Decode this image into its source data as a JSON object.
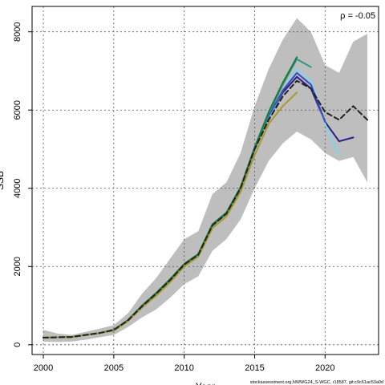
{
  "chart_data": {
    "type": "line",
    "title": "",
    "xlabel": "Year",
    "ylabel": "SSB",
    "xlim": [
      1999.2,
      2023.8
    ],
    "ylim": [
      -250,
      8650
    ],
    "xticks": [
      2000,
      2005,
      2010,
      2015,
      2020
    ],
    "yticks": [
      0,
      2000,
      4000,
      6000,
      8000
    ],
    "grid": true,
    "annotation": "ρ = -0.05",
    "confidence_band": {
      "x": [
        2000,
        2001,
        2002,
        2003,
        2004,
        2005,
        2006,
        2007,
        2008,
        2009,
        2010,
        2011,
        2012,
        2013,
        2014,
        2015,
        2016,
        2017,
        2018,
        2019,
        2020,
        2021,
        2022,
        2023
      ],
      "upper": [
        380,
        290,
        250,
        330,
        410,
        500,
        800,
        1300,
        1700,
        2200,
        2700,
        2900,
        3850,
        4150,
        4900,
        6100,
        7050,
        7800,
        8350,
        8000,
        7150,
        6950,
        7750,
        7950
      ],
      "lower": [
        80,
        70,
        80,
        130,
        190,
        250,
        450,
        700,
        900,
        1200,
        1550,
        1750,
        2400,
        2700,
        3200,
        4000,
        4700,
        5150,
        5450,
        5250,
        4900,
        4700,
        4800,
        4150
      ]
    },
    "series": [
      {
        "color": "#222222",
        "dash": true,
        "x": [
          2000,
          2001,
          2002,
          2003,
          2004,
          2005,
          2006,
          2007,
          2008,
          2009,
          2010,
          2011,
          2012,
          2013,
          2014,
          2015,
          2016,
          2017,
          2018,
          2019,
          2020,
          2021,
          2022,
          2023
        ],
        "values": [
          180,
          190,
          200,
          250,
          300,
          380,
          620,
          980,
          1300,
          1650,
          2050,
          2300,
          3050,
          3350,
          4000,
          5000,
          5750,
          6350,
          6750,
          6550,
          5950,
          5750,
          6100,
          5750
        ]
      },
      {
        "color": "#2a1f85",
        "x": [
          2000,
          2001,
          2002,
          2003,
          2004,
          2005,
          2006,
          2007,
          2008,
          2009,
          2010,
          2011,
          2012,
          2013,
          2014,
          2015,
          2016,
          2017,
          2018,
          2019,
          2020,
          2021,
          2022
        ],
        "values": [
          180,
          190,
          200,
          250,
          300,
          380,
          620,
          980,
          1300,
          1650,
          2050,
          2300,
          3050,
          3350,
          4000,
          5000,
          5800,
          6450,
          6850,
          6550,
          5700,
          5200,
          5300
        ]
      },
      {
        "color": "#7fd6ea",
        "x": [
          2000,
          2001,
          2002,
          2003,
          2004,
          2005,
          2006,
          2007,
          2008,
          2009,
          2010,
          2011,
          2012,
          2013,
          2014,
          2015,
          2016,
          2017,
          2018,
          2019,
          2020,
          2021
        ],
        "values": [
          180,
          190,
          200,
          250,
          300,
          380,
          620,
          980,
          1300,
          1650,
          2050,
          2300,
          3050,
          3350,
          4000,
          5000,
          5800,
          6500,
          7050,
          6750,
          5650,
          4850
        ]
      },
      {
        "color": "#3b47c2",
        "x": [
          2000,
          2001,
          2002,
          2003,
          2004,
          2005,
          2006,
          2007,
          2008,
          2009,
          2010,
          2011,
          2012,
          2013,
          2014,
          2015,
          2016,
          2017,
          2018,
          2019,
          2020
        ],
        "values": [
          180,
          190,
          200,
          250,
          300,
          380,
          620,
          980,
          1300,
          1650,
          2050,
          2300,
          3050,
          3350,
          4000,
          5000,
          5850,
          6500,
          6950,
          6650,
          5700
        ]
      },
      {
        "color": "#2f9a8c",
        "x": [
          2000,
          2001,
          2002,
          2003,
          2004,
          2005,
          2006,
          2007,
          2008,
          2009,
          2010,
          2011,
          2012,
          2013,
          2014,
          2015,
          2016,
          2017,
          2018,
          2019
        ],
        "values": [
          180,
          190,
          200,
          250,
          300,
          380,
          620,
          980,
          1300,
          1650,
          2050,
          2300,
          3050,
          3350,
          4000,
          5000,
          5900,
          6650,
          7300,
          7100
        ]
      },
      {
        "color": "#1f7a3a",
        "x": [
          2000,
          2001,
          2002,
          2003,
          2004,
          2005,
          2006,
          2007,
          2008,
          2009,
          2010,
          2011,
          2012,
          2013,
          2014,
          2015,
          2016,
          2017,
          2018
        ],
        "values": [
          180,
          190,
          200,
          250,
          300,
          380,
          630,
          1000,
          1320,
          1680,
          2070,
          2320,
          3080,
          3380,
          4030,
          5050,
          5950,
          6700,
          7350
        ]
      },
      {
        "color": "#a89a2a",
        "x": [
          2000,
          2001,
          2002,
          2003,
          2004,
          2005,
          2006,
          2007,
          2008,
          2009,
          2010,
          2011,
          2012,
          2013,
          2014,
          2015,
          2016,
          2017,
          2018
        ],
        "values": [
          180,
          190,
          200,
          250,
          300,
          360,
          600,
          950,
          1250,
          1600,
          2000,
          2250,
          2980,
          3280,
          3900,
          4850,
          5650,
          6100,
          6450
        ]
      }
    ]
  },
  "footer": "stockassessment.org,NWWG24_S-WGC, r18587, git:c9c61ac53a0d"
}
